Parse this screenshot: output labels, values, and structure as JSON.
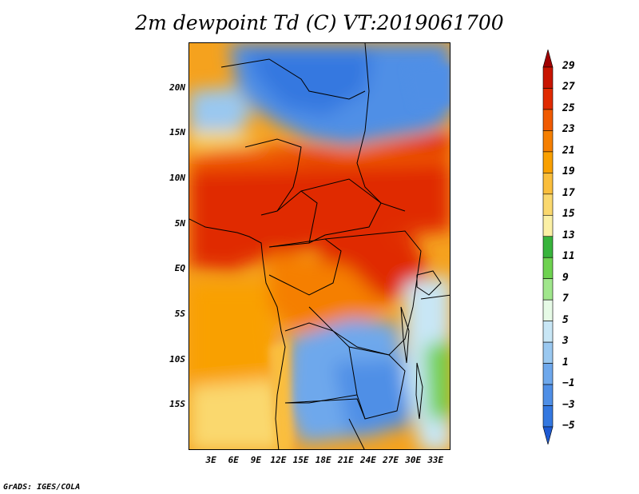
{
  "title": "2m dewpoint Td (C) VT:2019061700",
  "footer": "GrADS: IGES/COLA",
  "map": {
    "lon_range": [
      0,
      35
    ],
    "lat_range": [
      -20,
      25
    ],
    "lat_labels": [
      {
        "value": 20,
        "text": "20N"
      },
      {
        "value": 15,
        "text": "15N"
      },
      {
        "value": 10,
        "text": "10N"
      },
      {
        "value": 5,
        "text": "5N"
      },
      {
        "value": 0,
        "text": "EQ"
      },
      {
        "value": -5,
        "text": "5S"
      },
      {
        "value": -10,
        "text": "10S"
      },
      {
        "value": -15,
        "text": "15S"
      }
    ],
    "lon_labels": [
      {
        "value": 3,
        "text": "3E"
      },
      {
        "value": 6,
        "text": "6E"
      },
      {
        "value": 9,
        "text": "9E"
      },
      {
        "value": 12,
        "text": "12E"
      },
      {
        "value": 15,
        "text": "15E"
      },
      {
        "value": 18,
        "text": "18E"
      },
      {
        "value": 21,
        "text": "21E"
      },
      {
        "value": 24,
        "text": "24E"
      },
      {
        "value": 27,
        "text": "27E"
      },
      {
        "value": 30,
        "text": "30E"
      },
      {
        "value": 33,
        "text": "33E"
      }
    ]
  },
  "colorbar": {
    "labels": [
      "29",
      "27",
      "25",
      "23",
      "21",
      "19",
      "17",
      "15",
      "13",
      "11",
      "9",
      "7",
      "5",
      "3",
      "1",
      "−1",
      "−3",
      "−5"
    ],
    "colors": [
      "#a00000",
      "#c81400",
      "#e02a00",
      "#f05a00",
      "#f57f00",
      "#f9a000",
      "#fabe3c",
      "#fad86e",
      "#fbf0a5",
      "#38b43c",
      "#6ed250",
      "#a0e68c",
      "#e6fae6",
      "#c8e6f5",
      "#9ac8f0",
      "#6ea8ec",
      "#4f8fe6",
      "#3478e0",
      "#1e5ad2"
    ]
  }
}
